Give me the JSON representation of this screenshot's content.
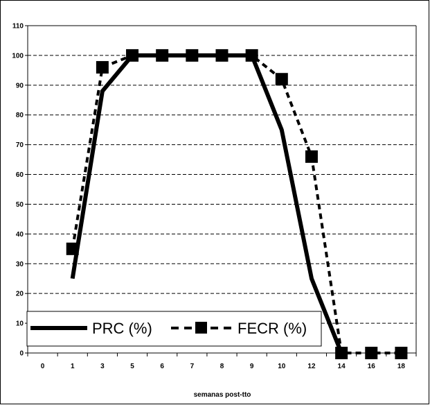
{
  "chart_data": {
    "type": "line",
    "categories": [
      "0",
      "1",
      "3",
      "5",
      "6",
      "7",
      "8",
      "9",
      "10",
      "12",
      "14",
      "16",
      "18"
    ],
    "series": [
      {
        "name": "PRC (%)",
        "values": [
          null,
          25,
          88,
          100,
          100,
          100,
          100,
          100,
          75,
          25,
          0,
          null,
          null
        ],
        "style": "solid",
        "marker": "none",
        "color": "#000000"
      },
      {
        "name": "FECR (%)",
        "values": [
          null,
          35,
          96,
          100,
          100,
          100,
          100,
          100,
          92,
          66,
          0,
          0,
          0
        ],
        "style": "dashed",
        "marker": "square",
        "color": "#000000"
      }
    ],
    "xlabel": "semanas post-tto",
    "ylabel": "",
    "ylim": [
      0,
      110
    ],
    "yticks": [
      "0",
      "10",
      "20",
      "30",
      "40",
      "50",
      "60",
      "70",
      "80",
      "90",
      "100",
      "110"
    ],
    "grid": "horizontal dashed",
    "legend_position": "bottom-left"
  }
}
